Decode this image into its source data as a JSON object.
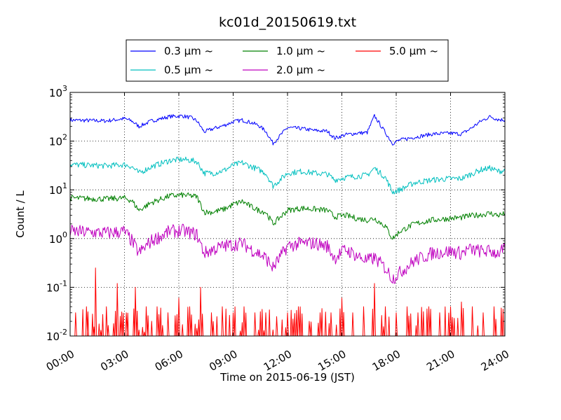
{
  "chart_data": {
    "type": "line",
    "title": "kc01d_20150619.txt",
    "xlabel": "Time on 2015-06-19 (JST)",
    "ylabel": "Count / L",
    "y_scale": "log",
    "ylim": [
      0.01,
      1000
    ],
    "xlim": [
      "00:00",
      "24:00"
    ],
    "grid": true,
    "legend_position": "top-center",
    "x_ticks": [
      "00:00",
      "03:00",
      "06:00",
      "09:00",
      "12:00",
      "15:00",
      "18:00",
      "21:00",
      "24:00"
    ],
    "y_ticks": [
      {
        "value": 0.01,
        "base": "10",
        "exp": "-2"
      },
      {
        "value": 0.1,
        "base": "10",
        "exp": "-1"
      },
      {
        "value": 1,
        "base": "10",
        "exp": "0"
      },
      {
        "value": 10,
        "base": "10",
        "exp": "1"
      },
      {
        "value": 100,
        "base": "10",
        "exp": "2"
      },
      {
        "value": 1000,
        "base": "10",
        "exp": "3"
      }
    ],
    "series": [
      {
        "name": "0.3 μm  ~",
        "color": "#0000ff",
        "x": [
          0,
          1,
          2,
          3,
          3.4,
          3.8,
          4.5,
          5.5,
          6.2,
          6.7,
          7.0,
          7.4,
          7.9,
          8.5,
          9.0,
          9.5,
          10.0,
          10.4,
          10.8,
          11.2,
          12.0,
          12.8,
          13.5,
          14.2,
          14.6,
          15.2,
          15.8,
          16.4,
          16.8,
          17.4,
          17.8,
          18.2,
          19.0,
          20.0,
          21.0,
          21.6,
          22.0,
          22.7,
          23.2,
          23.6,
          24.0
        ],
        "y": [
          270,
          265,
          260,
          290,
          260,
          200,
          260,
          320,
          330,
          300,
          260,
          155,
          180,
          210,
          250,
          270,
          240,
          210,
          160,
          90,
          190,
          180,
          165,
          160,
          115,
          135,
          145,
          150,
          330,
          150,
          90,
          105,
          120,
          140,
          145,
          140,
          170,
          260,
          320,
          280,
          270
        ]
      },
      {
        "name": "0.5 μm  ~",
        "color": "#00bfbf",
        "x": [
          0,
          1,
          2,
          3,
          3.4,
          3.8,
          4.5,
          5.5,
          6.2,
          6.7,
          7.0,
          7.4,
          7.9,
          8.5,
          9.0,
          9.5,
          10.0,
          10.4,
          10.8,
          11.2,
          12.0,
          12.8,
          13.5,
          14.2,
          14.6,
          15.2,
          15.8,
          16.4,
          16.8,
          17.4,
          17.8,
          18.2,
          19.0,
          20.0,
          21.0,
          21.6,
          22.0,
          22.7,
          23.2,
          23.6,
          24.0
        ],
        "y": [
          33,
          32,
          31,
          33,
          30,
          22,
          30,
          40,
          42,
          40,
          38,
          22,
          22,
          25,
          32,
          36,
          30,
          26,
          22,
          12,
          22,
          24,
          22,
          21,
          16,
          18,
          19,
          20,
          28,
          18,
          9,
          10,
          14,
          16,
          17,
          17,
          20,
          26,
          28,
          24,
          25
        ]
      },
      {
        "name": "1.0 μm  ~",
        "color": "#008000",
        "x": [
          0,
          1,
          2,
          3,
          3.4,
          3.8,
          4.5,
          5.5,
          6.2,
          6.7,
          7.0,
          7.4,
          7.9,
          8.5,
          9.0,
          9.5,
          10.0,
          10.4,
          10.8,
          11.2,
          12.0,
          12.8,
          13.5,
          14.2,
          14.6,
          15.2,
          15.8,
          16.4,
          16.8,
          17.4,
          17.8,
          18.2,
          19.0,
          20.0,
          21.0,
          21.6,
          22.0,
          22.7,
          23.2,
          23.6,
          24.0
        ],
        "y": [
          6.8,
          6.6,
          6.5,
          6.8,
          6.0,
          3.8,
          5.5,
          7.5,
          7.8,
          7.5,
          7.2,
          3.5,
          3.5,
          4.0,
          5.0,
          5.8,
          4.5,
          3.8,
          3.5,
          2.0,
          3.8,
          4.2,
          4.0,
          3.8,
          2.8,
          3.0,
          2.6,
          2.4,
          2.6,
          1.8,
          1.0,
          1.4,
          2.0,
          2.4,
          2.6,
          2.7,
          2.9,
          3.1,
          3.3,
          3.0,
          3.2
        ]
      },
      {
        "name": "2.0 μm  ~",
        "color": "#bf00bf",
        "x": [
          0,
          1,
          2,
          3,
          3.4,
          3.8,
          4.5,
          5.5,
          6.2,
          6.7,
          7.0,
          7.4,
          7.9,
          8.5,
          9.0,
          9.5,
          10.0,
          10.4,
          10.8,
          11.2,
          12.0,
          12.8,
          13.5,
          14.2,
          14.6,
          15.2,
          15.8,
          16.4,
          16.8,
          17.4,
          17.8,
          18.2,
          19.0,
          20.0,
          21.0,
          21.6,
          22.0,
          22.7,
          23.2,
          23.6,
          24.0
        ],
        "y": [
          1.4,
          1.35,
          1.3,
          1.4,
          0.9,
          0.5,
          0.9,
          1.4,
          1.45,
          1.3,
          1.2,
          0.5,
          0.6,
          0.7,
          0.75,
          0.8,
          0.6,
          0.5,
          0.4,
          0.25,
          0.7,
          0.8,
          0.8,
          0.7,
          0.4,
          0.6,
          0.45,
          0.35,
          0.4,
          0.25,
          0.15,
          0.2,
          0.35,
          0.5,
          0.55,
          0.5,
          0.6,
          0.55,
          0.55,
          0.5,
          0.6
        ]
      },
      {
        "name": "5.0 μm  ~",
        "color": "#ff0000",
        "baseline": 0.01,
        "x": [
          0.3,
          0.9,
          1.4,
          2.0,
          2.6,
          3.1,
          3.6,
          4.2,
          4.8,
          5.4,
          6.0,
          6.6,
          7.2,
          7.8,
          8.4,
          9.0,
          9.6,
          10.2,
          10.8,
          11.4,
          12.0,
          12.6,
          13.2,
          13.8,
          14.4,
          15.0,
          15.6,
          16.2,
          16.8,
          17.4,
          18.0,
          18.6,
          19.2,
          19.8,
          20.4,
          21.0,
          21.6,
          22.2,
          22.8,
          23.4
        ],
        "y": [
          0.03,
          0.04,
          0.25,
          0.04,
          0.12,
          0.03,
          0.1,
          0.04,
          0.04,
          0.03,
          0.06,
          0.04,
          0.1,
          0.03,
          0.04,
          0.03,
          0.04,
          0.03,
          0.03,
          0.025,
          0.03,
          0.04,
          0.02,
          0.03,
          0.03,
          0.06,
          0.03,
          0.04,
          0.12,
          0.04,
          0.03,
          0.04,
          0.03,
          0.04,
          0.03,
          0.04,
          0.05,
          0.04,
          0.03,
          0.04
        ]
      }
    ]
  }
}
